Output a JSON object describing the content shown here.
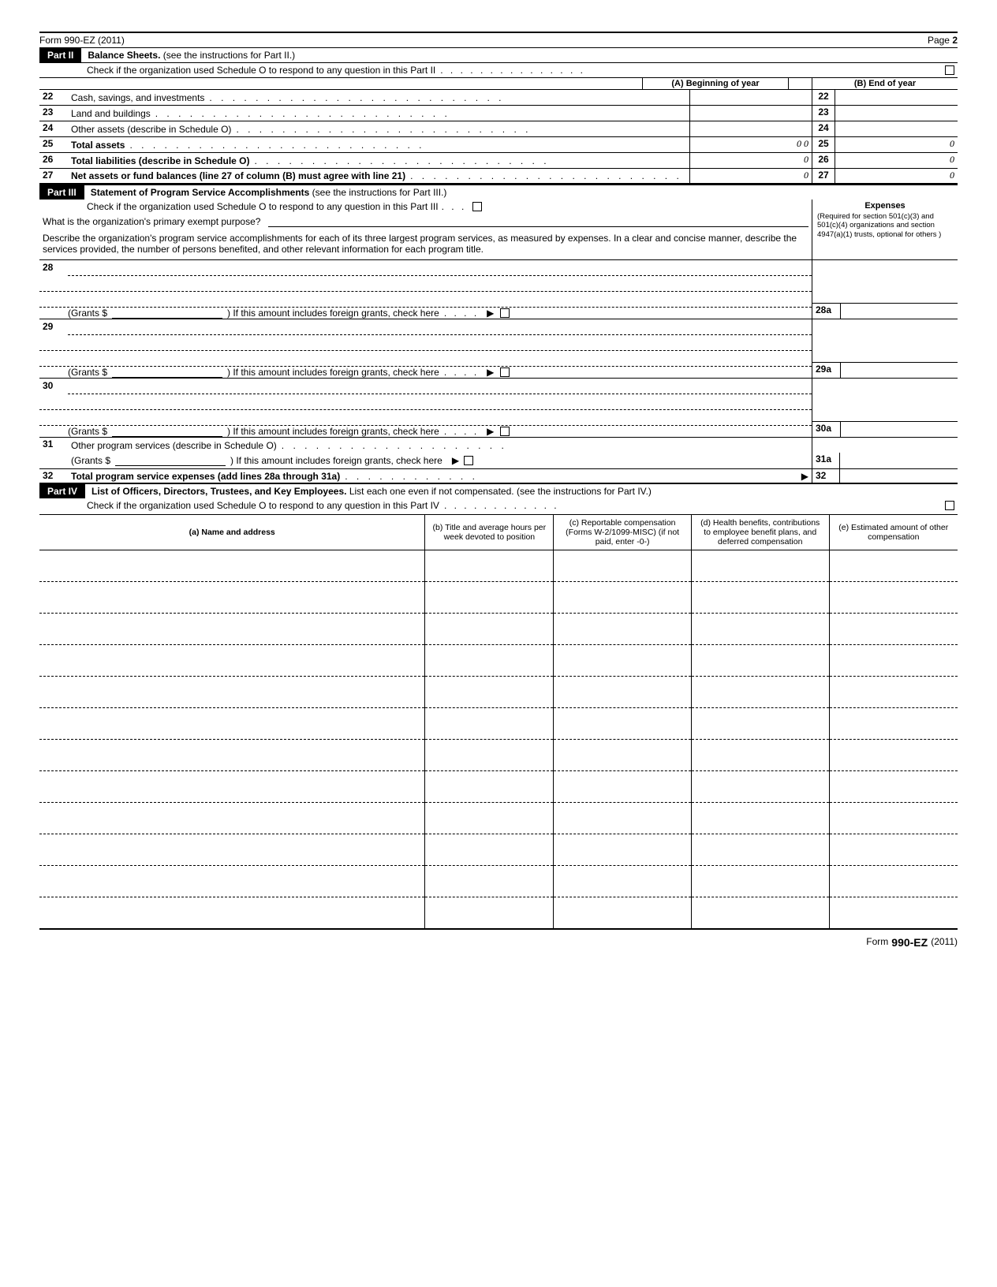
{
  "form": {
    "name": "Form 990-EZ (2011)",
    "page": "Page 2",
    "footer_prefix": "Form",
    "footer_form": "990-EZ",
    "footer_year": "(2011)"
  },
  "part2": {
    "label": "Part II",
    "title": "Balance Sheets.",
    "subtitle": "(see the instructions for Part II.)",
    "check_text": "Check if the organization used Schedule O to respond to any question in this Part II",
    "col_a": "(A) Beginning of year",
    "col_b": "(B) End of year",
    "rows": [
      {
        "n": "22",
        "label": "Cash, savings, and investments",
        "mid": "22",
        "a": "",
        "b": ""
      },
      {
        "n": "23",
        "label": "Land and buildings",
        "mid": "23",
        "a": "",
        "b": ""
      },
      {
        "n": "24",
        "label": "Other assets (describe in Schedule O)",
        "mid": "24",
        "a": "",
        "b": ""
      },
      {
        "n": "25",
        "label": "Total assets",
        "mid": "25",
        "a": "0 0",
        "b": "0"
      },
      {
        "n": "26",
        "label": "Total liabilities (describe in Schedule O)",
        "mid": "26",
        "a": "0",
        "b": "0"
      },
      {
        "n": "27",
        "label": "Net assets or fund balances (line 27 of column (B) must agree with line 21)",
        "mid": "27",
        "a": "0",
        "b": "0"
      }
    ],
    "bold_rows": [
      "25",
      "26",
      "27"
    ]
  },
  "part3": {
    "label": "Part III",
    "title": "Statement of Program Service Accomplishments",
    "subtitle": "(see the instructions for Part III.)",
    "check_text": "Check if the organization used Schedule O to respond to any question in this Part III",
    "primary_q": "What is the organization's primary exempt purpose?",
    "desc": "Describe the organization's program service accomplishments for each of its three largest program services, as measured by expenses. In a clear and concise manner, describe the services provided, the number of persons benefited, and other relevant information for each program title.",
    "expenses_title": "Expenses",
    "expenses_sub": "(Required for section 501(c)(3) and 501(c)(4) organizations and section 4947(a)(1) trusts, optional for others )",
    "grants_label": "(Grants $",
    "foreign_text": ")  If this amount includes foreign grants, check here",
    "blocks": [
      {
        "n": "28",
        "rn": "28a"
      },
      {
        "n": "29",
        "rn": "29a"
      },
      {
        "n": "30",
        "rn": "30a"
      }
    ],
    "line31": {
      "n": "31",
      "label": "Other program services (describe in Schedule O)",
      "rn": "31a"
    },
    "line32": {
      "n": "32",
      "label": "Total program service expenses (add lines 28a through 31a)",
      "rn": "32"
    }
  },
  "part4": {
    "label": "Part IV",
    "title": "List of Officers, Directors, Trustees, and Key Employees.",
    "subtitle": "List each one even if not compensated. (see the instructions for Part IV.)",
    "check_text": "Check if the organization used Schedule O to respond to any question in this Part IV",
    "headers": {
      "a": "(a) Name and address",
      "b": "(b) Title and average hours per week devoted to position",
      "c": "(c) Reportable compensation (Forms W-2/1099-MISC) (if not paid, enter -0-)",
      "d": "(d) Health benefits, contributions to employee benefit plans, and deferred compensation",
      "e": "(e) Estimated amount of other compensation"
    },
    "row_count": 12
  }
}
